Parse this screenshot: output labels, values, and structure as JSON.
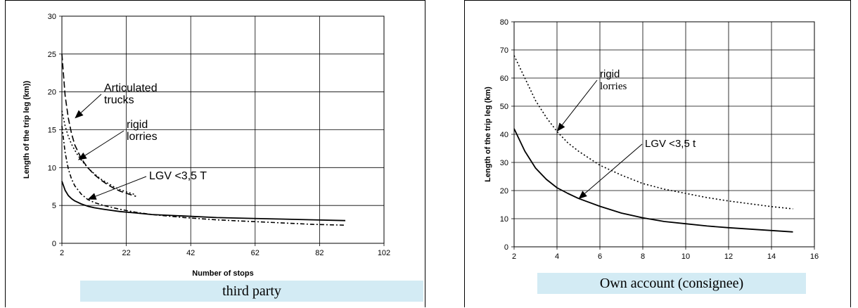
{
  "charts": [
    {
      "id": "left",
      "caption": "third party",
      "chart_data": {
        "type": "line",
        "title": "",
        "xlabel": "Number of stops",
        "ylabel": "Length of the trip leg (km))",
        "xlim": [
          2,
          102
        ],
        "ylim": [
          0,
          30
        ],
        "xticks": [
          2,
          22,
          42,
          62,
          82,
          102
        ],
        "yticks": [
          0,
          5,
          10,
          15,
          20,
          25,
          30
        ],
        "grid": true,
        "series": [
          {
            "name": "Articulated trucks",
            "style": "long-dash",
            "x": [
              2,
              3,
              4,
              5,
              6,
              8,
              10,
              12,
              14,
              16,
              18,
              20,
              22,
              25
            ],
            "y": [
              25,
              19.5,
              16.5,
              14.5,
              13,
              11.2,
              10,
              9.1,
              8.4,
              7.8,
              7.3,
              6.9,
              6.6,
              6.2
            ]
          },
          {
            "name": "rigid lorries",
            "style": "dotted",
            "x": [
              2,
              3,
              4,
              5,
              6,
              7,
              8,
              10,
              12,
              14,
              16,
              18,
              20,
              22,
              25
            ],
            "y": [
              17.5,
              15.5,
              14.1,
              13.1,
              12.3,
              11.6,
              11,
              10,
              9.2,
              8.5,
              8,
              7.5,
              7.1,
              6.8,
              6.4
            ]
          },
          {
            "name": "LGV <3,5 T",
            "style": "dash-dot",
            "x": [
              2,
              3,
              4,
              5,
              6,
              8,
              10,
              12,
              15,
              20,
              25,
              30,
              40,
              50,
              60,
              70,
              80,
              90
            ],
            "y": [
              15.5,
              12,
              9.8,
              8.5,
              7.6,
              6.5,
              5.8,
              5.4,
              5,
              4.5,
              4.1,
              3.8,
              3.4,
              3.1,
              2.9,
              2.7,
              2.5,
              2.4
            ]
          },
          {
            "name": "",
            "style": "solid",
            "x": [
              2,
              3,
              4,
              5,
              6,
              8,
              10,
              12,
              15,
              20,
              25,
              30,
              40,
              50,
              60,
              70,
              80,
              90
            ],
            "y": [
              8.2,
              7,
              6.3,
              5.9,
              5.6,
              5.2,
              4.9,
              4.7,
              4.5,
              4.2,
              4,
              3.8,
              3.6,
              3.4,
              3.3,
              3.2,
              3.1,
              3
            ]
          }
        ],
        "annotations": [
          {
            "lines": [
              "Articulated",
              "trucks"
            ],
            "target": [
              6,
              16.5
            ]
          },
          {
            "lines": [
              "rigid",
              "lorries"
            ],
            "target": [
              7,
              11
            ]
          },
          {
            "lines": [
              "LGV <3,5 T"
            ],
            "target": [
              10,
              5.8
            ]
          }
        ]
      }
    },
    {
      "id": "right",
      "caption": "Own account (consignee)",
      "chart_data": {
        "type": "line",
        "title": "",
        "xlabel": "",
        "ylabel": "Length of the trip leg  (km)",
        "xlim": [
          2,
          16
        ],
        "ylim": [
          0,
          80
        ],
        "xticks": [
          2,
          4,
          6,
          8,
          10,
          12,
          14,
          16
        ],
        "yticks": [
          0,
          10,
          20,
          30,
          40,
          50,
          60,
          70,
          80
        ],
        "grid": true,
        "series": [
          {
            "name": "rigid lorries",
            "style": "dotted",
            "x": [
              2,
              2.5,
              3,
              3.5,
              4,
              4.5,
              5,
              6,
              7,
              8,
              9,
              10,
              11,
              12,
              13,
              14,
              15
            ],
            "y": [
              68,
              60,
              52,
              46,
              41,
              37,
              34,
              29,
              25.5,
              22.5,
              20.5,
              19,
              17.5,
              16.3,
              15.3,
              14.3,
              13.5
            ]
          },
          {
            "name": "LGV <3,5 t",
            "style": "solid",
            "x": [
              2,
              2.5,
              3,
              3.5,
              4,
              4.5,
              5,
              6,
              7,
              8,
              9,
              10,
              11,
              12,
              13,
              14,
              15
            ],
            "y": [
              42,
              34,
              28,
              24,
              21,
              19,
              17.2,
              14.4,
              12,
              10.3,
              9,
              8.2,
              7.4,
              6.8,
              6.3,
              5.8,
              5.3
            ]
          }
        ],
        "annotations": [
          {
            "lines": [
              "rigid",
              "lorries"
            ],
            "target": [
              4,
              41
            ]
          },
          {
            "lines": [
              "LGV <3,5 t"
            ],
            "target": [
              5,
              17
            ]
          }
        ]
      }
    }
  ]
}
